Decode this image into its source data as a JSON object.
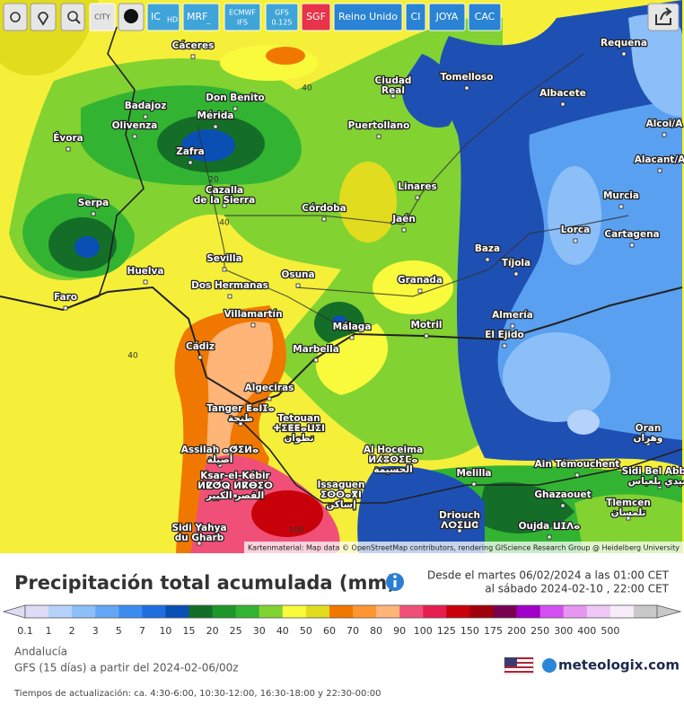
{
  "toolbar": {
    "buttons": [
      [
        "CITY"
      ],
      [
        "IC",
        "HD"
      ],
      [
        "MRF",
        "_"
      ],
      [
        "ECMWF",
        "IFS"
      ],
      [
        "GFS",
        "0.125"
      ],
      [
        "SGF"
      ],
      [
        "Reino Unido"
      ],
      [
        "CI"
      ],
      [
        "JOYA"
      ],
      [
        "CAC"
      ]
    ]
  },
  "map": {
    "places": [
      [
        "Cáceres"
      ],
      [
        "Requena"
      ],
      [
        "Tomelloso"
      ],
      [
        "Ciudad",
        "Real"
      ],
      [
        "Don Benito"
      ],
      [
        "Badajoz"
      ],
      [
        "Mérida"
      ],
      [
        "Albacete"
      ],
      [
        "Olivenza"
      ],
      [
        "Évora"
      ],
      [
        "Puertollano"
      ],
      [
        "Zafra"
      ],
      [
        "Alacant/A"
      ],
      [
        "Alcoi/A"
      ],
      [
        "Murcia"
      ],
      [
        "Serpa"
      ],
      [
        "Cazalla",
        "de la Sierra"
      ],
      [
        "Córdoba"
      ],
      [
        "Linares"
      ],
      [
        "Jaén"
      ],
      [
        "Lorca"
      ],
      [
        "Cartagena"
      ],
      [
        "Baza"
      ],
      [
        "Tíjola"
      ],
      [
        "Sevilla"
      ],
      [
        "Huelva"
      ],
      [
        "Osuna"
      ],
      [
        "Granada"
      ],
      [
        "Dos Hermanas"
      ],
      [
        "Faro"
      ],
      [
        "Villamartín"
      ],
      [
        "Almería"
      ],
      [
        "Málaga"
      ],
      [
        "Motril"
      ],
      [
        "El Ejido"
      ],
      [
        "Cádiz"
      ],
      [
        "Marbella"
      ],
      [
        "Algeciras"
      ],
      [
        "Tanger ⵟⴰⵏⵊⴰ",
        "طنجة"
      ],
      [
        "Tetouan",
        "ⵜⵉⵟⵟⴰⵡⵉⵏ",
        "تطوان"
      ],
      [
        "Assilah ⴰⵚⵉⵍⴰ",
        "أصيلة"
      ],
      [
        "Al Hoceima",
        "ⵍⵃⵓⵙⵉⵎⴰ",
        "الحسيمة"
      ],
      [
        "Oran",
        "وهران"
      ],
      [
        "Ain Témouchent"
      ],
      [
        "Sidi Bel Abbès",
        "سيدي بلعباس"
      ],
      [
        "Melilla"
      ],
      [
        "Ksar-el-Kébir",
        "ⵍⵇⵚⵕ ⵍⴽⴱⵉⵔ",
        "القصر الكبير"
      ],
      [
        "Issaguen",
        "ⵉⵙⵙⴰⴳⵏ",
        "إساكن"
      ],
      [
        "Ghazaouet"
      ],
      [
        "Tlemcen",
        "تلمسان"
      ],
      [
        "Driouch",
        "ⴷⵔⵉⵡⵛ"
      ],
      [
        "Oujda ⵡⵊⴷⴰ"
      ],
      [
        "Sidi Yahya",
        "du Gharb"
      ]
    ],
    "contour_labels": [
      40,
      20,
      40,
      40,
      100
    ],
    "attribution": "Kartenmaterial: Map data © OpenStreetMap contributors, rendering GIScience Research Group @ Heidelberg University"
  },
  "header": {
    "title": "Precipitación total acumulada (mm)",
    "period_from": "Desde el martes 06/02/2024 a las 01:00 CET",
    "period_to": "al sábado 2024-02-10 , 22:00 CET"
  },
  "legend": {
    "labels": [
      0.1,
      1,
      2,
      3,
      5,
      7,
      10,
      15,
      20,
      25,
      30,
      40,
      50,
      60,
      70,
      80,
      90,
      100,
      125,
      150,
      175,
      200,
      250,
      300,
      400,
      500
    ],
    "colors": [
      "#dcdcf5",
      "#b4d2fa",
      "#8cbef8",
      "#64a6f5",
      "#3c8cf0",
      "#1e6ee0",
      "#0a4fb4",
      "#146e28",
      "#1e9628",
      "#32b432",
      "#82d232",
      "#fafa3c",
      "#e1dc1e",
      "#f07800",
      "#ff9632",
      "#ffb478",
      "#f05078",
      "#e61e50",
      "#c8000a",
      "#a0000a",
      "#780050",
      "#a000c8",
      "#d250f0",
      "#e696f0",
      "#f0c8f8",
      "#f8ecfa",
      "#c8c8c8"
    ]
  },
  "footer": {
    "region": "Andalucía",
    "model": "GFS (15 días) a partir del 2024-02-06/00z",
    "brand": "meteologix.com",
    "update_times": "Tiempos de actualización: ca. 4:30-6:00, 10:30-12:00, 16:30-18:00 y 22:30-00:00"
  }
}
